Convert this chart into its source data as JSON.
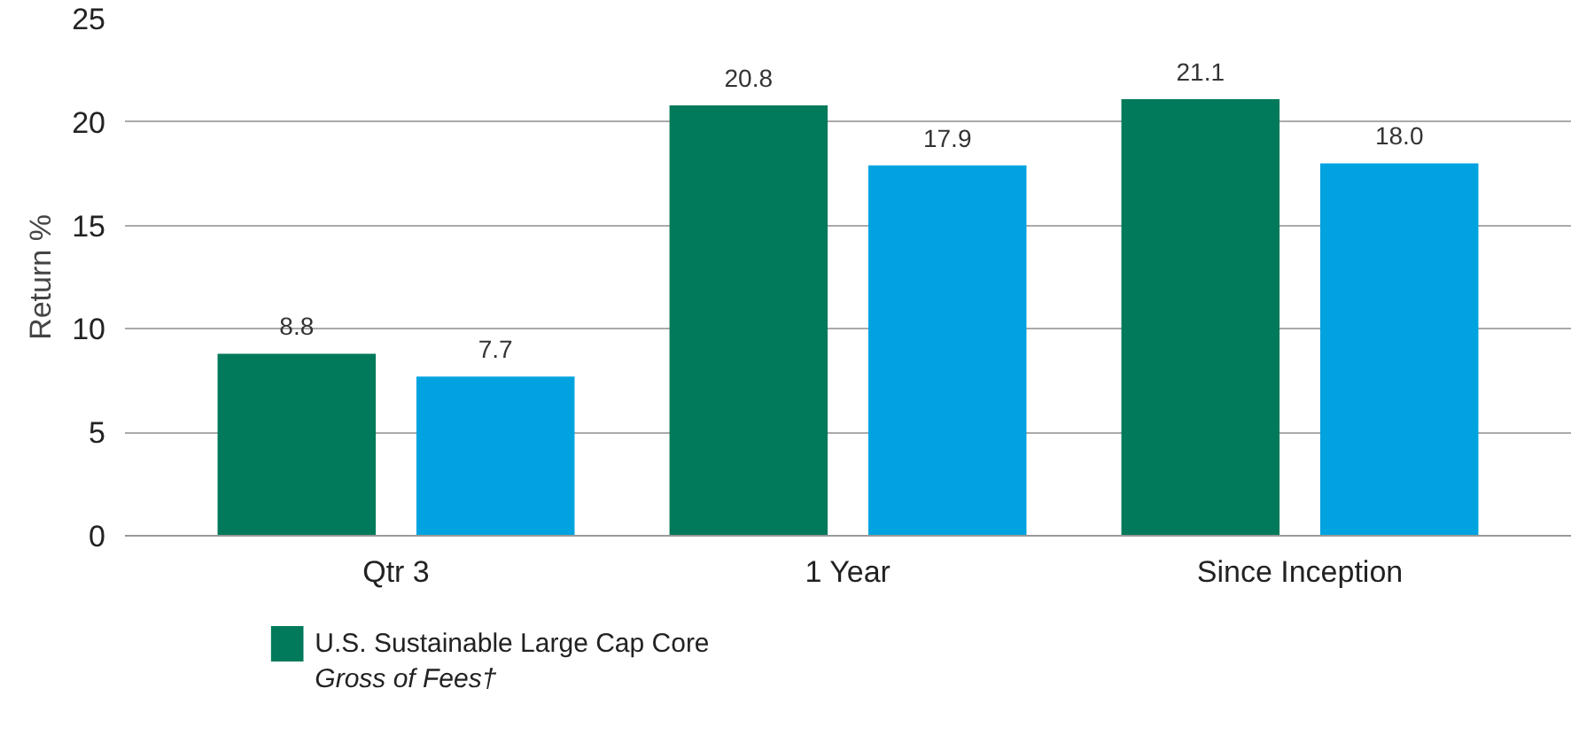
{
  "chart_data": {
    "type": "bar",
    "ylabel": "Return %",
    "categories": [
      "Qtr 3",
      "1 Year",
      "Since Inception"
    ],
    "series": [
      {
        "name": "U.S. Sustainable Large Cap Core\nGross of Fees†",
        "color": "#007a5a",
        "values": [
          8.8,
          20.8,
          21.1
        ],
        "value_labels": [
          "8.8",
          "20.8",
          "21.1"
        ]
      },
      {
        "color": "#00a3e0",
        "values": [
          7.7,
          17.9,
          18.0
        ],
        "value_labels": [
          "7.7",
          "17.9",
          "18.0"
        ]
      }
    ],
    "ylim": [
      0,
      25
    ],
    "yticks": [
      0,
      5,
      10,
      15,
      20,
      25
    ],
    "grid": "y",
    "legend": "bottom"
  }
}
